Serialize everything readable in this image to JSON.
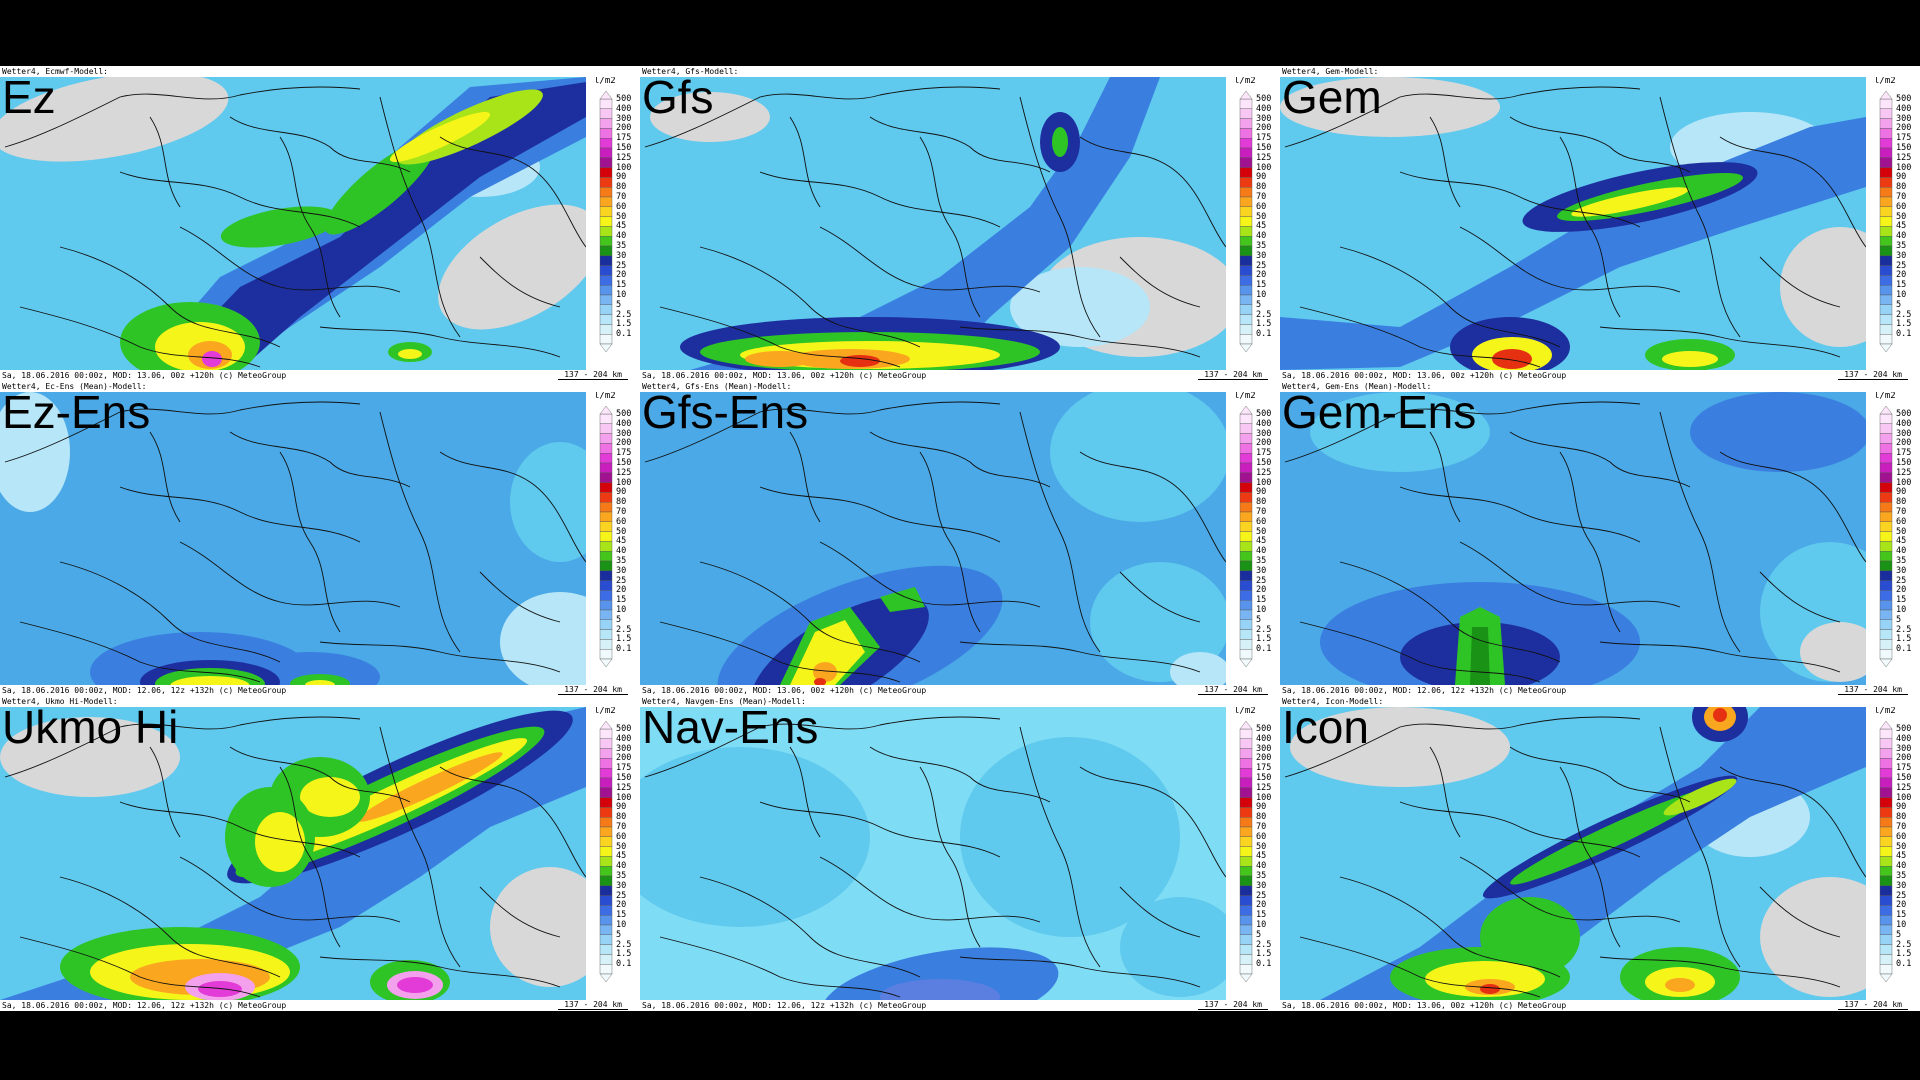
{
  "panels": [
    {
      "label": "Ez",
      "header": "Wetter4, Ecmwf-Modell:",
      "footer": "Sa, 18.06.2016 00:00z, MOD: 13.06, 00z +120h (c) MeteoGroup",
      "scale": "137 - 204 km",
      "style": "ez"
    },
    {
      "label": "Gfs",
      "header": "Wetter4, Gfs-Modell:",
      "footer": "Sa, 18.06.2016 00:00z, MOD: 13.06, 00z +120h (c) MeteoGroup",
      "scale": "137 - 204 km",
      "style": "gfs"
    },
    {
      "label": "Gem",
      "header": "Wetter4, Gem-Modell:",
      "footer": "Sa, 18.06.2016 00:00z, MOD: 13.06, 00z +120h (c) MeteoGroup",
      "scale": "137 - 204 km",
      "style": "gem"
    },
    {
      "label": "Ez-Ens",
      "header": "Wetter4, Ec-Ens (Mean)-Modell:",
      "footer": "Sa, 18.06.2016 00:00z, MOD: 12.06, 12z +132h (c) MeteoGroup",
      "scale": "137 - 204 km",
      "style": "ezens"
    },
    {
      "label": "Gfs-Ens",
      "header": "Wetter4, Gfs-Ens (Mean)-Modell:",
      "footer": "Sa, 18.06.2016 00:00z, MOD: 13.06, 00z +120h (c) MeteoGroup",
      "scale": "137 - 204 km",
      "style": "gfsens"
    },
    {
      "label": "Gem-Ens",
      "header": "Wetter4, Gem-Ens (Mean)-Modell:",
      "footer": "Sa, 18.06.2016 00:00z, MOD: 12.06, 12z +132h (c) MeteoGroup",
      "scale": "137 - 204 km",
      "style": "gemens"
    },
    {
      "label": "Ukmo Hi",
      "header": "Wetter4, Ukmo Hi-Modell:",
      "footer": "Sa, 18.06.2016 00:00z, MOD: 12.06, 12z +132h (c) MeteoGroup",
      "scale": "137 - 204 km",
      "style": "ukmo"
    },
    {
      "label": "Nav-Ens",
      "header": "Wetter4, Navgem-Ens (Mean)-Modell:",
      "footer": "Sa, 18.06.2016 00:00z, MOD: 12.06, 12z +132h (c) MeteoGroup",
      "scale": "137 - 204 km",
      "style": "navens"
    },
    {
      "label": "Icon",
      "header": "Wetter4, Icon-Modell:",
      "footer": "Sa, 18.06.2016 00:00z, MOD: 13.06, 00z +120h (c) MeteoGroup",
      "scale": "137 - 204 km",
      "style": "icon"
    }
  ],
  "legend": {
    "unit": "l/m2",
    "levels": [
      "500",
      "400",
      "300",
      "200",
      "175",
      "150",
      "125",
      "100",
      "90",
      "80",
      "70",
      "60",
      "50",
      "45",
      "40",
      "35",
      "30",
      "25",
      "20",
      "15",
      "10",
      "5",
      "2.5",
      "1.5",
      "0.1"
    ],
    "colors": [
      "#fde6fb",
      "#f9c7f3",
      "#f3a1ec",
      "#ee72e4",
      "#e33bd7",
      "#c71ebd",
      "#a0128f",
      "#d4000a",
      "#ee3a12",
      "#f77a18",
      "#fba61f",
      "#fbd321",
      "#f5f51a",
      "#a8e418",
      "#43c51c",
      "#1a9216",
      "#1a2d9c",
      "#2a4cd0",
      "#3c6de4",
      "#5893ec",
      "#78b5f2",
      "#97d3f6",
      "#b7e6f8",
      "#d7f1f9",
      "#f0fafc"
    ]
  }
}
